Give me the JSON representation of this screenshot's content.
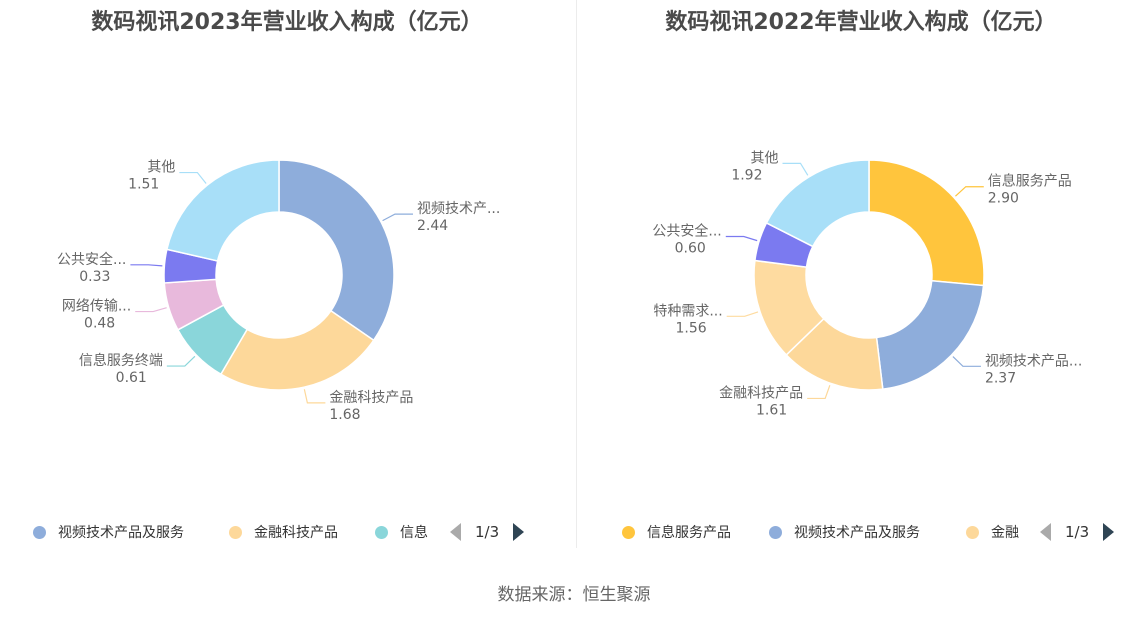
{
  "source": "数据来源：恒生聚源",
  "chart_data": [
    {
      "type": "pie",
      "title": "数码视讯2023年营业收入构成（亿元）",
      "slices": [
        {
          "label": "视频技术产...",
          "value": 2.44,
          "value_label": "2.44",
          "color": "#8eaddb"
        },
        {
          "label": "金融科技产品",
          "value": 1.68,
          "value_label": "1.68",
          "color": "#fdd89a"
        },
        {
          "label": "信息服务终端",
          "value": 0.61,
          "value_label": "0.61",
          "color": "#8ad6da"
        },
        {
          "label": "网络传输...",
          "value": 0.48,
          "value_label": "0.48",
          "color": "#e8b9dc"
        },
        {
          "label": "公共安全...",
          "value": 0.33,
          "value_label": "0.33",
          "color": "#7b7af0"
        },
        {
          "label": "其他",
          "value": 1.51,
          "value_label": "1.51",
          "color": "#a8dff8"
        }
      ],
      "legend": {
        "items": [
          {
            "label": "视频技术产品及服务",
            "color": "#8eaddb"
          },
          {
            "label": "金融科技产品",
            "color": "#fdd89a"
          },
          {
            "label": "信息",
            "color": "#8ad6da"
          }
        ],
        "page": "1/3"
      }
    },
    {
      "type": "pie",
      "title": "数码视讯2022年营业收入构成（亿元）",
      "slices": [
        {
          "label": "信息服务产品",
          "value": 2.9,
          "value_label": "2.90",
          "color": "#ffc53d"
        },
        {
          "label": "视频技术产品...",
          "value": 2.37,
          "value_label": "2.37",
          "color": "#8eaddb"
        },
        {
          "label": "金融科技产品",
          "value": 1.61,
          "value_label": "1.61",
          "color": "#fdd89a"
        },
        {
          "label": "特种需求...",
          "value": 1.56,
          "value_label": "1.56",
          "color": "#fedba0"
        },
        {
          "label": "公共安全...",
          "value": 0.6,
          "value_label": "0.60",
          "color": "#7b7af0"
        },
        {
          "label": "其他",
          "value": 1.92,
          "value_label": "1.92",
          "color": "#a8dff8"
        }
      ],
      "legend": {
        "items": [
          {
            "label": "信息服务产品",
            "color": "#ffc53d"
          },
          {
            "label": "视频技术产品及服务",
            "color": "#8eaddb"
          },
          {
            "label": "金融",
            "color": "#fdd89a"
          }
        ],
        "page": "1/3"
      }
    }
  ]
}
